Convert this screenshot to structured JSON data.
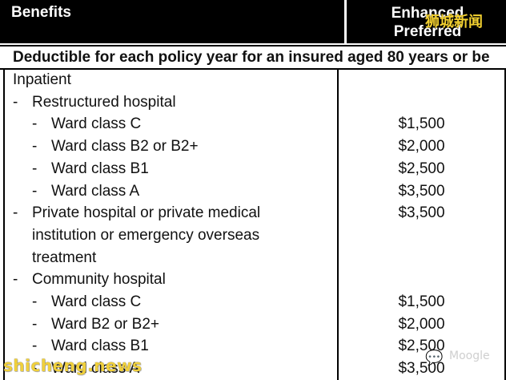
{
  "header": {
    "benefits_label": "Benefits",
    "plan_label_line1": "Enhanced",
    "plan_label_line2": "Preferred"
  },
  "subheader": "Deductible for each policy year for an insured aged 80 years or be",
  "rows": [
    {
      "indent": 0,
      "dash": "",
      "label": "Inpatient",
      "amount": ""
    },
    {
      "indent": 1,
      "dash": "-",
      "label": "Restructured hospital",
      "amount": ""
    },
    {
      "indent": 2,
      "dash": "-",
      "label": "Ward class C",
      "amount": "$1,500"
    },
    {
      "indent": 2,
      "dash": "-",
      "label": "Ward class B2 or B2+",
      "amount": "$2,000"
    },
    {
      "indent": 2,
      "dash": "-",
      "label": "Ward class B1",
      "amount": "$2,500"
    },
    {
      "indent": 2,
      "dash": "-",
      "label": "Ward class A",
      "amount": "$3,500"
    },
    {
      "indent": 1,
      "dash": "-",
      "label": "Private hospital or private medical",
      "amount": "$3,500"
    },
    {
      "indent": 1,
      "dash": "",
      "label": "institution or emergency overseas",
      "amount": ""
    },
    {
      "indent": 1,
      "dash": "",
      "label": "treatment",
      "amount": ""
    },
    {
      "indent": 1,
      "dash": "-",
      "label": "Community hospital",
      "amount": ""
    },
    {
      "indent": 2,
      "dash": "-",
      "label": "Ward class C",
      "amount": "$1,500"
    },
    {
      "indent": 2,
      "dash": "-",
      "label": "Ward B2 or B2+",
      "amount": "$2,000"
    },
    {
      "indent": 2,
      "dash": "-",
      "label": "Ward class B1",
      "amount": "$2,500"
    },
    {
      "indent": 2,
      "dash": "-",
      "label": "Ward class A",
      "amount": "$3,500"
    }
  ],
  "watermarks": {
    "top_right_text": "狮城新闻",
    "bottom_left_text": "shicheng.news",
    "bottom_right_text": "Moogle",
    "bottom_right_icon": "chat-bubble-icon",
    "accent_color": "#f2d030"
  }
}
